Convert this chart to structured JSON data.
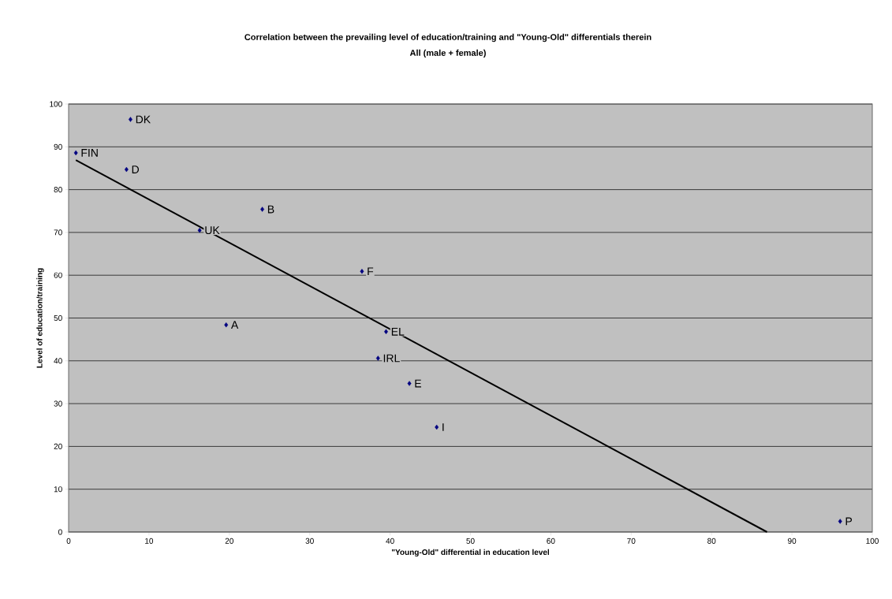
{
  "chart_data": {
    "type": "scatter",
    "title": "Correlation between the prevailing level of education/training and \"Young-Old\" differentials therein",
    "subtitle": "All (male + female)",
    "xlabel": "\"Young-Old\" differential in education level",
    "ylabel": "Level of education/training",
    "x": [
      0.9,
      7.7,
      7.2,
      16.3,
      24.1,
      19.6,
      36.5,
      39.5,
      38.5,
      42.4,
      45.8,
      96.0
    ],
    "series": [
      {
        "color": "#000080",
        "marker": "diamond",
        "values": [
          88.6,
          96.4,
          84.7,
          70.5,
          75.4,
          48.4,
          60.9,
          46.8,
          40.6,
          34.7,
          24.5,
          2.5
        ]
      },
      {
        "type": "line",
        "color": "#000000",
        "marker": "none",
        "x": [
          0.9,
          86.9
        ],
        "values": [
          86.9,
          0
        ]
      }
    ],
    "annotations": [
      {
        "text": "FIN",
        "x": 0.9,
        "y": 88.6
      },
      {
        "text": "DK",
        "x": 7.7,
        "y": 96.4
      },
      {
        "text": "D",
        "x": 7.2,
        "y": 84.7
      },
      {
        "text": "UK",
        "x": 16.3,
        "y": 70.5
      },
      {
        "text": "B",
        "x": 24.1,
        "y": 75.4
      },
      {
        "text": "A",
        "x": 19.6,
        "y": 48.4
      },
      {
        "text": "F",
        "x": 36.5,
        "y": 60.9
      },
      {
        "text": "EL",
        "x": 39.5,
        "y": 46.8
      },
      {
        "text": "IRL",
        "x": 38.5,
        "y": 40.6
      },
      {
        "text": "E",
        "x": 42.4,
        "y": 34.7
      },
      {
        "text": "I",
        "x": 45.8,
        "y": 24.5
      },
      {
        "text": "P",
        "x": 96.0,
        "y": 2.5
      }
    ],
    "xlim": [
      0,
      100
    ],
    "ylim": [
      0,
      100
    ],
    "xticks": [
      0,
      10,
      20,
      30,
      40,
      50,
      60,
      70,
      80,
      90,
      100
    ],
    "yticks": [
      0,
      10,
      20,
      30,
      40,
      50,
      60,
      70,
      80,
      90,
      100
    ],
    "grid": "y"
  }
}
